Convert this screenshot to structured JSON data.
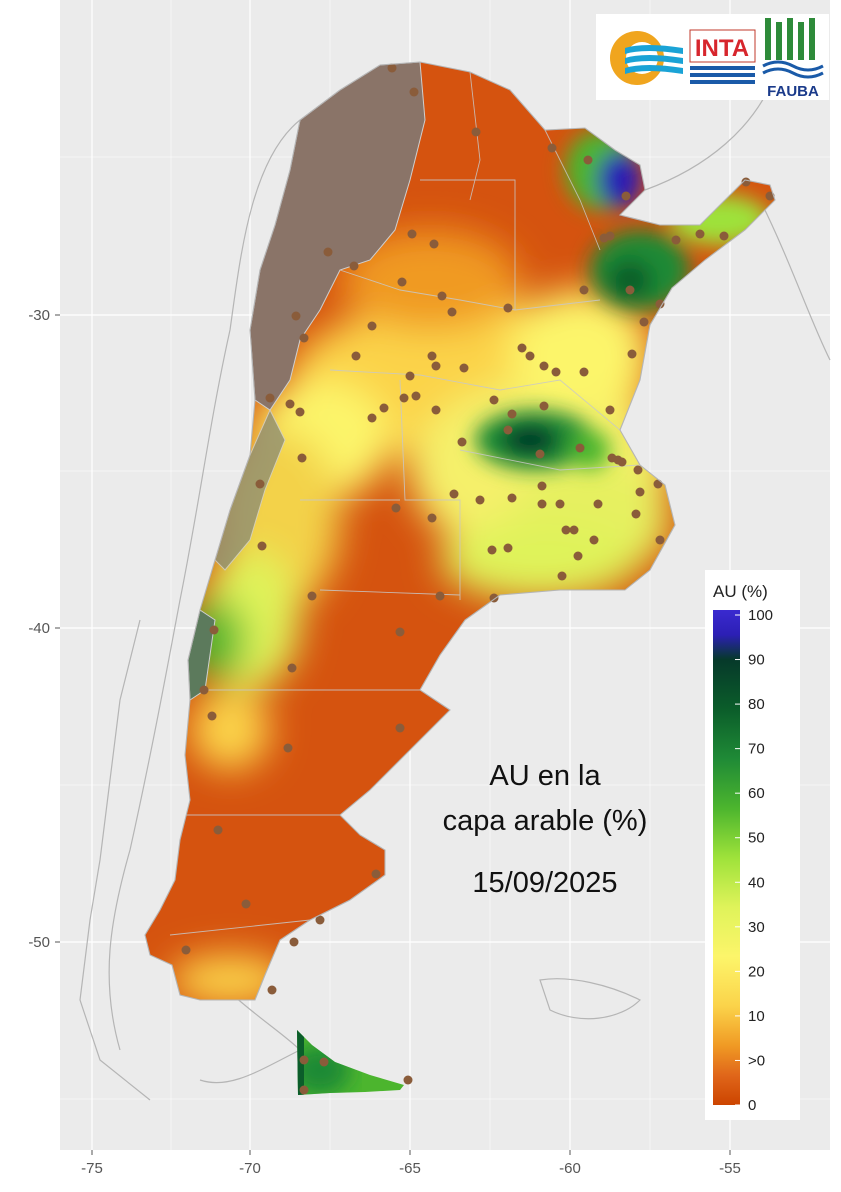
{
  "map": {
    "annotation_lines": [
      "AU en la",
      "capa arable (%)",
      "15/09/2025"
    ],
    "x_axis_ticks": [
      "-75",
      "-70",
      "-65",
      "-60",
      "-55"
    ],
    "y_axis_ticks": [
      "-30",
      "-40",
      "-50"
    ],
    "logos": {
      "inta": "INTA",
      "fauba": "FAUBA"
    }
  },
  "legend": {
    "title": "AU (%)",
    "labels": [
      "100",
      "90",
      "80",
      "70",
      "60",
      "50",
      "40",
      "30",
      "20",
      "10",
      ">0",
      "0"
    ],
    "colors": [
      "#2c1fb5",
      "#06392a",
      "#0b5d2a",
      "#1f8a36",
      "#4cb52e",
      "#9ee23a",
      "#dff35a",
      "#fcf56a",
      "#fbd34a",
      "#f09a24",
      "#e0661a",
      "#cc4400"
    ]
  },
  "colors": {
    "no_data_zone": "#8a7468",
    "plot_background": "#ebebeb",
    "grid": "#ffffff",
    "station_dot": "#8a5c3a"
  }
}
